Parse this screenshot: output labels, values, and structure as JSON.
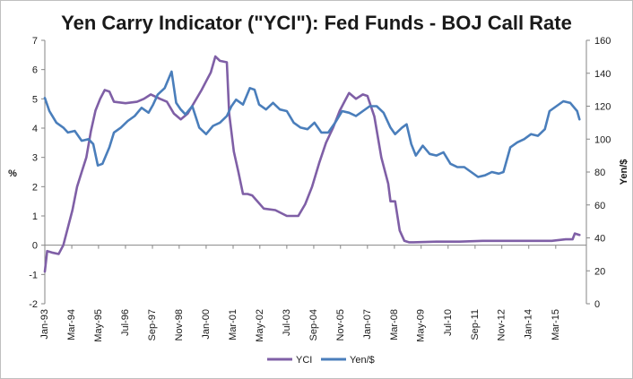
{
  "chart_data": {
    "type": "line",
    "title": "Yen Carry Indicator (\"YCI\"): Fed Funds - BOJ Call Rate",
    "ylabel_left": "%",
    "ylabel_right": "Yen/$",
    "ylim_left": [
      -2,
      7
    ],
    "yticks_left": [
      "-2",
      "-1",
      "0",
      "1",
      "2",
      "3",
      "4",
      "5",
      "6",
      "7"
    ],
    "ylim_right": [
      0,
      160
    ],
    "yticks_right": [
      "0",
      "20",
      "40",
      "60",
      "80",
      "100",
      "120",
      "140",
      "160"
    ],
    "xlim": [
      1993.0,
      2016.5
    ],
    "xtick_labels": [
      "Jan-93",
      "Mar-94",
      "May-95",
      "Jul-96",
      "Sep-97",
      "Nov-98",
      "Jan-00",
      "Mar-01",
      "May-02",
      "Jul-03",
      "Sep-04",
      "Nov-05",
      "Jan-07",
      "Mar-08",
      "May-09",
      "Jul-10",
      "Sep-11",
      "Nov-12",
      "Jan-14",
      "Mar-15"
    ],
    "xtick_values": [
      1993.0,
      1994.17,
      1995.33,
      1996.5,
      1997.67,
      1998.83,
      2000.0,
      2001.17,
      2002.33,
      2003.5,
      2004.67,
      2005.83,
      2007.0,
      2008.17,
      2009.33,
      2010.5,
      2011.67,
      2012.83,
      2014.0,
      2015.17
    ],
    "grid": false,
    "legend_position": "bottom",
    "series": [
      {
        "name": "YCI",
        "axis": "left",
        "color": "#7f5fa6",
        "x": [
          1993.0,
          1993.1,
          1993.3,
          1993.6,
          1993.8,
          1994.0,
          1994.2,
          1994.4,
          1994.6,
          1994.8,
          1995.0,
          1995.2,
          1995.4,
          1995.6,
          1995.8,
          1996.0,
          1996.5,
          1997.0,
          1997.3,
          1997.6,
          1998.0,
          1998.3,
          1998.6,
          1998.9,
          1999.2,
          1999.5,
          1999.8,
          2000.0,
          2000.2,
          2000.4,
          2000.6,
          2000.9,
          2001.0,
          2001.2,
          2001.4,
          2001.6,
          2001.8,
          2002.0,
          2002.5,
          2003.0,
          2003.5,
          2004.0,
          2004.3,
          2004.6,
          2004.9,
          2005.2,
          2005.5,
          2005.8,
          2006.0,
          2006.2,
          2006.5,
          2006.8,
          2007.0,
          2007.3,
          2007.6,
          2007.9,
          2008.0,
          2008.2,
          2008.4,
          2008.6,
          2008.8,
          2009.0,
          2010.0,
          2011.0,
          2012.0,
          2013.0,
          2014.0,
          2015.0,
          2015.6,
          2015.9,
          2016.0,
          2016.2
        ],
        "values": [
          -0.9,
          -0.2,
          -0.25,
          -0.3,
          0.0,
          0.6,
          1.2,
          2.0,
          2.5,
          3.0,
          3.9,
          4.6,
          5.0,
          5.3,
          5.25,
          4.9,
          4.85,
          4.9,
          5.0,
          5.15,
          5.0,
          4.9,
          4.5,
          4.3,
          4.5,
          4.9,
          5.3,
          5.6,
          5.9,
          6.45,
          6.3,
          6.25,
          4.5,
          3.2,
          2.5,
          1.75,
          1.75,
          1.7,
          1.25,
          1.2,
          1.0,
          1.0,
          1.4,
          2.0,
          2.8,
          3.5,
          4.0,
          4.6,
          4.9,
          5.2,
          5.0,
          5.15,
          5.1,
          4.4,
          3.0,
          2.1,
          1.5,
          1.5,
          0.5,
          0.15,
          0.1,
          0.1,
          0.12,
          0.12,
          0.15,
          0.15,
          0.15,
          0.15,
          0.2,
          0.2,
          0.4,
          0.35
        ]
      },
      {
        "name": "Yen/$",
        "axis": "right",
        "color": "#4a7ebb",
        "x": [
          1993.0,
          1993.2,
          1993.5,
          1993.8,
          1994.0,
          1994.3,
          1994.6,
          1994.9,
          1995.1,
          1995.3,
          1995.5,
          1995.8,
          1996.0,
          1996.3,
          1996.6,
          1996.9,
          1997.2,
          1997.5,
          1997.7,
          1997.9,
          1998.2,
          1998.5,
          1998.7,
          1998.9,
          1999.1,
          1999.4,
          1999.7,
          2000.0,
          2000.3,
          2000.6,
          2000.9,
          2001.1,
          2001.3,
          2001.6,
          2001.9,
          2002.1,
          2002.3,
          2002.6,
          2002.9,
          2003.2,
          2003.5,
          2003.8,
          2004.1,
          2004.4,
          2004.7,
          2005.0,
          2005.3,
          2005.6,
          2005.9,
          2006.2,
          2006.5,
          2006.8,
          2007.1,
          2007.4,
          2007.7,
          2008.0,
          2008.2,
          2008.5,
          2008.7,
          2008.9,
          2009.1,
          2009.4,
          2009.7,
          2010.0,
          2010.3,
          2010.6,
          2010.9,
          2011.2,
          2011.5,
          2011.8,
          2012.1,
          2012.4,
          2012.7,
          2012.9,
          2013.2,
          2013.5,
          2013.8,
          2014.1,
          2014.4,
          2014.7,
          2014.9,
          2015.2,
          2015.5,
          2015.8,
          2016.1,
          2016.2
        ],
        "values": [
          125,
          117,
          110,
          107,
          104,
          105,
          99,
          100,
          97,
          84,
          85,
          95,
          104,
          107,
          111,
          114,
          119,
          116,
          121,
          127,
          131,
          141,
          122,
          118,
          115,
          120,
          107,
          103,
          108,
          110,
          114,
          120,
          124,
          121,
          131,
          130,
          121,
          118,
          122,
          118,
          117,
          110,
          107,
          106,
          110,
          104,
          104,
          110,
          117,
          116,
          114,
          117,
          120,
          120,
          116,
          107,
          103,
          107,
          109,
          97,
          90,
          96,
          91,
          90,
          92,
          85,
          83,
          83,
          80,
          77,
          78,
          80,
          79,
          80,
          95,
          98,
          100,
          103,
          102,
          106,
          117,
          120,
          123,
          122,
          117,
          112
        ]
      }
    ]
  }
}
